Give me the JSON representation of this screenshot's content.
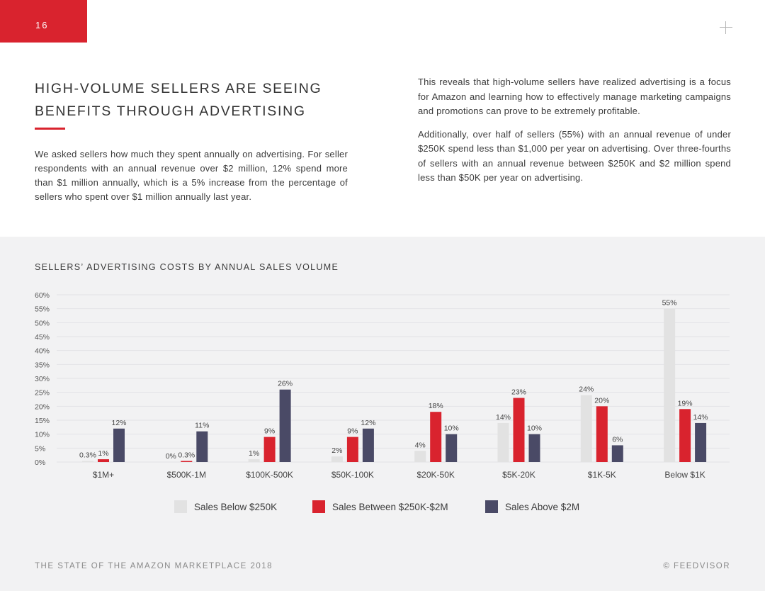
{
  "page_number": "16",
  "heading": {
    "line1": "HIGH-VOLUME SELLERS ARE SEEING",
    "line2": "BENEFITS THROUGH ADVERTISING"
  },
  "intro": "We asked sellers how much they spent annually on advertising. For seller respondents with an annual revenue over $2 million, 12% spend more than $1 million annually, which is a 5% increase from the percentage of sellers who spent over $1 million annually last year.",
  "right_column": {
    "p1": "This reveals that high-volume sellers have realized advertising is a focus for Amazon and learning how to effectively manage marketing campaigns and promotions can prove to be extremely profitable.",
    "p2": "Additionally, over half of sellers (55%) with an annual revenue of under $250K spend less than $1,000 per year on advertising. Over three-fourths of sellers with an annual revenue between $250K and $2 million spend less than $50K per year on advertising."
  },
  "chart_title": "SELLERS’ ADVERTISING COSTS BY ANNUAL SALES VOLUME",
  "chart_data": {
    "type": "bar",
    "title": "SELLERS’ ADVERTISING COSTS BY ANNUAL SALES VOLUME",
    "xlabel": "",
    "ylabel": "",
    "ylim": [
      0,
      60
    ],
    "yticks": [
      "0%",
      "5%",
      "10%",
      "15%",
      "20%",
      "25%",
      "30%",
      "35%",
      "40%",
      "45%",
      "50%",
      "55%",
      "60%"
    ],
    "categories": [
      "$1M+",
      "$500K-1M",
      "$100K-500K",
      "$50K-100K",
      "$20K-50K",
      "$5K-20K",
      "$1K-5K",
      "Below $1K"
    ],
    "series": [
      {
        "name": "Sales Below $250K",
        "color": "#e2e2e2",
        "values": [
          0.3,
          0,
          1,
          2,
          4,
          14,
          24,
          55
        ],
        "labels": [
          "0.3%",
          "0%",
          "1%",
          "2%",
          "4%",
          "14%",
          "24%",
          "55%"
        ]
      },
      {
        "name": "Sales Between $250K-$2M",
        "color": "#d9232e",
        "values": [
          1,
          0.3,
          9,
          9,
          18,
          23,
          20,
          19
        ],
        "labels": [
          "1%",
          "0.3%",
          "9%",
          "9%",
          "18%",
          "23%",
          "20%",
          "19%"
        ]
      },
      {
        "name": "Sales Above $2M",
        "color": "#4a4a66",
        "values": [
          12,
          11,
          26,
          12,
          10,
          10,
          6,
          14
        ],
        "labels": [
          "12%",
          "11%",
          "26%",
          "12%",
          "10%",
          "10%",
          "6%",
          "14%"
        ]
      }
    ],
    "legend_position": "bottom"
  },
  "footer": {
    "left": "THE STATE OF THE AMAZON MARKETPLACE 2018",
    "right": "© FEEDVISOR"
  }
}
